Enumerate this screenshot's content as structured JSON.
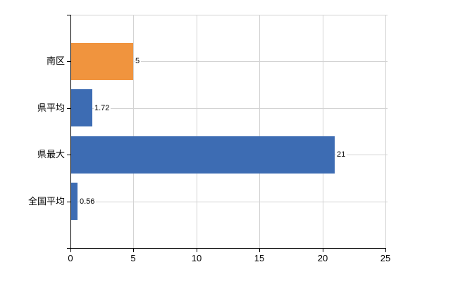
{
  "chart_data": {
    "type": "bar",
    "orientation": "horizontal",
    "title": "",
    "categories": [
      "南区",
      "県平均",
      "県最大",
      "全国平均"
    ],
    "values": [
      5,
      1.72,
      21,
      0.56
    ],
    "value_labels": [
      "5",
      "1.72",
      "21",
      "0.56"
    ],
    "series_colors": [
      "#F0943E",
      "#3D6CB3",
      "#3D6CB3",
      "#3D6CB3"
    ],
    "xlim": [
      0,
      25
    ],
    "x_ticks": [
      0,
      5,
      10,
      15,
      20,
      25
    ],
    "x_tick_labels": [
      "0",
      "5",
      "10",
      "15",
      "20",
      "25"
    ],
    "grid": true,
    "legend": null
  },
  "colors": {
    "bar_blue": "#3D6CB3",
    "bar_orange": "#F0943E",
    "gridline": "#D3D3D3",
    "axis": "#000000",
    "text": "#000000",
    "background": "#FFFFFF"
  }
}
